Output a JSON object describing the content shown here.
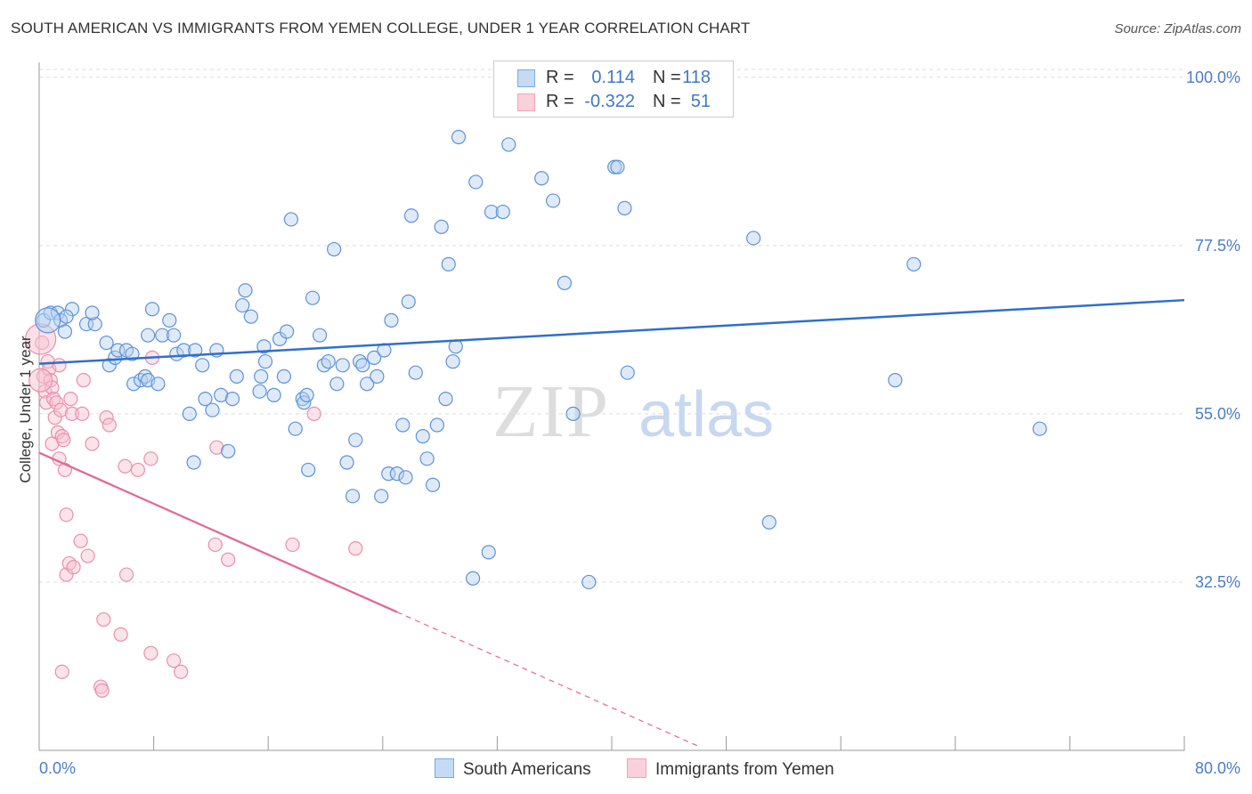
{
  "title": "SOUTH AMERICAN VS IMMIGRANTS FROM YEMEN COLLEGE, UNDER 1 YEAR CORRELATION CHART",
  "source": "Source: ZipAtlas.com",
  "watermark": {
    "zip": "ZIP",
    "atlas": "atlas"
  },
  "legend": {
    "rows": [
      {
        "r_label": "R =",
        "r_value": "0.114",
        "n_label": "N =",
        "n_value": "118",
        "color": "#7aaae3"
      },
      {
        "r_label": "R =",
        "r_value": "-0.322",
        "n_label": "N =",
        "n_value": "51",
        "color": "#f0a3bb"
      }
    ]
  },
  "bottom_legend": [
    {
      "label": "South Americans",
      "color": "#7aaae3"
    },
    {
      "label": "Immigrants from Yemen",
      "color": "#f0a3bb"
    }
  ],
  "colors": {
    "blue": "#7aaae3",
    "blue_line": "#2f6fcc",
    "pink": "#f0a3bb",
    "pink_line": "#e2678e",
    "tick_text": "#4a7cc9"
  },
  "chart_data": {
    "type": "scatter",
    "title": "SOUTH AMERICAN VS IMMIGRANTS FROM YEMEN COLLEGE, UNDER 1 YEAR CORRELATION CHART",
    "xlabel": "",
    "ylabel": "College, Under 1 year",
    "xlim": [
      0,
      80
    ],
    "ylim": [
      10,
      102
    ],
    "x_tick_labels": [
      "0.0%",
      "80.0%"
    ],
    "y_tick_labels": [
      "100.0%",
      "77.5%",
      "55.0%",
      "32.5%"
    ],
    "y_ticks": [
      100,
      77.5,
      55,
      32.5
    ],
    "grid": true,
    "series": [
      {
        "name": "South Americans",
        "color": "#7aaae3",
        "trend": {
          "x": [
            0,
            80
          ],
          "y": [
            61.7,
            70.2
          ]
        },
        "points": [
          [
            0.3,
            67.5
          ],
          [
            0.8,
            68.5
          ],
          [
            1.3,
            68.5
          ],
          [
            1.5,
            67.5
          ],
          [
            2.3,
            69.0
          ],
          [
            1.9,
            68.0
          ],
          [
            1.8,
            66.0
          ],
          [
            3.3,
            67.0
          ],
          [
            3.9,
            67.0
          ],
          [
            3.7,
            68.5
          ],
          [
            4.7,
            64.5
          ],
          [
            4.9,
            61.5
          ],
          [
            5.3,
            62.5
          ],
          [
            5.5,
            63.5
          ],
          [
            6.1,
            63.5
          ],
          [
            6.5,
            63.0
          ],
          [
            6.6,
            59.0
          ],
          [
            7.1,
            59.5
          ],
          [
            7.4,
            60.0
          ],
          [
            7.6,
            59.5
          ],
          [
            7.6,
            65.5
          ],
          [
            7.9,
            69.0
          ],
          [
            8.3,
            59.0
          ],
          [
            8.6,
            65.5
          ],
          [
            9.1,
            67.5
          ],
          [
            9.4,
            65.5
          ],
          [
            9.6,
            63.0
          ],
          [
            10.1,
            63.5
          ],
          [
            10.5,
            55.0
          ],
          [
            10.9,
            63.5
          ],
          [
            10.8,
            48.5
          ],
          [
            11.4,
            61.5
          ],
          [
            11.6,
            57.0
          ],
          [
            12.1,
            55.5
          ],
          [
            12.4,
            63.5
          ],
          [
            12.7,
            57.5
          ],
          [
            13.2,
            50.0
          ],
          [
            13.5,
            57.0
          ],
          [
            13.8,
            60.0
          ],
          [
            14.2,
            69.5
          ],
          [
            14.4,
            71.5
          ],
          [
            14.8,
            68.0
          ],
          [
            15.4,
            58.0
          ],
          [
            15.5,
            60.0
          ],
          [
            15.7,
            64.0
          ],
          [
            15.8,
            62.0
          ],
          [
            16.4,
            57.5
          ],
          [
            16.8,
            65.0
          ],
          [
            17.1,
            60.0
          ],
          [
            17.3,
            66.0
          ],
          [
            17.6,
            81.0
          ],
          [
            17.9,
            53.0
          ],
          [
            18.4,
            57.0
          ],
          [
            18.5,
            56.5
          ],
          [
            18.7,
            57.5
          ],
          [
            18.8,
            47.5
          ],
          [
            19.1,
            70.5
          ],
          [
            19.6,
            65.5
          ],
          [
            19.9,
            61.5
          ],
          [
            20.2,
            62.0
          ],
          [
            20.6,
            77.0
          ],
          [
            20.8,
            59.0
          ],
          [
            21.2,
            61.5
          ],
          [
            21.5,
            48.5
          ],
          [
            21.9,
            44.0
          ],
          [
            22.1,
            51.5
          ],
          [
            22.4,
            62.0
          ],
          [
            22.6,
            61.5
          ],
          [
            22.9,
            59.0
          ],
          [
            23.4,
            62.5
          ],
          [
            23.6,
            60.0
          ],
          [
            23.9,
            44.0
          ],
          [
            24.1,
            63.5
          ],
          [
            24.4,
            47.0
          ],
          [
            24.6,
            67.5
          ],
          [
            25.0,
            47.0
          ],
          [
            25.4,
            53.5
          ],
          [
            25.6,
            46.5
          ],
          [
            25.8,
            70.0
          ],
          [
            26.0,
            81.5
          ],
          [
            26.3,
            60.5
          ],
          [
            26.8,
            52.0
          ],
          [
            27.1,
            49.0
          ],
          [
            27.5,
            45.5
          ],
          [
            27.8,
            53.5
          ],
          [
            28.1,
            80.0
          ],
          [
            28.4,
            57.0
          ],
          [
            28.6,
            75.0
          ],
          [
            28.9,
            62.0
          ],
          [
            29.1,
            64.0
          ],
          [
            29.3,
            92.0
          ],
          [
            30.5,
            86.0
          ],
          [
            31.4,
            36.5
          ],
          [
            31.6,
            82.0
          ],
          [
            32.4,
            82.0
          ],
          [
            32.8,
            91.0
          ],
          [
            30.3,
            33.0
          ],
          [
            35.1,
            86.5
          ],
          [
            35.9,
            83.5
          ],
          [
            36.7,
            72.5
          ],
          [
            37.3,
            55.0
          ],
          [
            38.4,
            32.5
          ],
          [
            40.2,
            88.0
          ],
          [
            40.4,
            88.0
          ],
          [
            40.9,
            82.5
          ],
          [
            41.1,
            60.5
          ],
          [
            49.9,
            78.5
          ],
          [
            51.0,
            40.5
          ],
          [
            61.1,
            75.0
          ],
          [
            59.8,
            59.5
          ],
          [
            69.9,
            53.0
          ]
        ]
      },
      {
        "name": "Immigrants from Yemen",
        "color": "#f0a3bb",
        "trend": {
          "x": [
            0,
            25
          ],
          "y": [
            49.8,
            28.5
          ]
        },
        "trend_dashed": {
          "x": [
            25,
            46
          ],
          "y": [
            28.5,
            10.6
          ]
        },
        "points": [
          [
            0.2,
            64.5
          ],
          [
            0.3,
            60.0
          ],
          [
            0.4,
            58.0
          ],
          [
            0.5,
            56.5
          ],
          [
            0.6,
            62.0
          ],
          [
            0.7,
            61.0
          ],
          [
            0.8,
            59.5
          ],
          [
            0.9,
            58.5
          ],
          [
            0.9,
            51.0
          ],
          [
            1.0,
            57.0
          ],
          [
            1.1,
            54.5
          ],
          [
            1.2,
            56.5
          ],
          [
            1.3,
            52.5
          ],
          [
            1.4,
            61.5
          ],
          [
            1.4,
            49.0
          ],
          [
            1.5,
            55.5
          ],
          [
            1.6,
            52.0
          ],
          [
            1.7,
            51.5
          ],
          [
            1.8,
            47.5
          ],
          [
            1.9,
            41.5
          ],
          [
            1.9,
            33.5
          ],
          [
            2.1,
            35.0
          ],
          [
            2.2,
            57.0
          ],
          [
            2.3,
            55.0
          ],
          [
            2.4,
            34.5
          ],
          [
            2.9,
            38.0
          ],
          [
            3.0,
            55.0
          ],
          [
            3.1,
            59.5
          ],
          [
            3.4,
            36.0
          ],
          [
            3.7,
            51.0
          ],
          [
            4.5,
            27.5
          ],
          [
            4.7,
            54.5
          ],
          [
            4.9,
            53.5
          ],
          [
            5.7,
            25.5
          ],
          [
            6.0,
            48.0
          ],
          [
            6.1,
            33.5
          ],
          [
            6.9,
            47.5
          ],
          [
            7.8,
            49.0
          ],
          [
            7.8,
            23.0
          ],
          [
            7.9,
            62.5
          ],
          [
            9.4,
            22.0
          ],
          [
            9.9,
            20.5
          ],
          [
            12.3,
            37.5
          ],
          [
            12.4,
            50.5
          ],
          [
            13.2,
            35.5
          ],
          [
            17.7,
            37.5
          ],
          [
            19.2,
            55.0
          ],
          [
            22.1,
            37.0
          ],
          [
            4.3,
            18.5
          ],
          [
            4.4,
            18.0
          ],
          [
            1.6,
            20.5
          ]
        ]
      }
    ]
  }
}
